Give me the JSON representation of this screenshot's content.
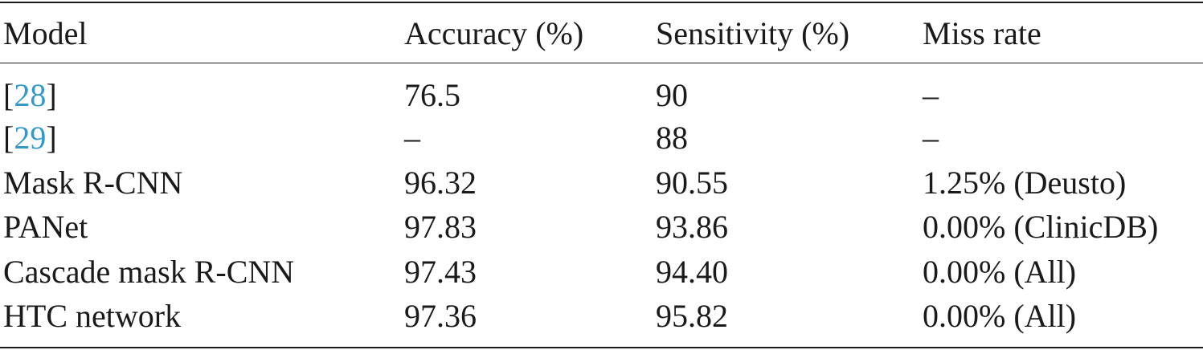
{
  "table": {
    "headers": [
      "Model",
      "Accuracy (%)",
      "Sensitivity (%)",
      "Miss rate"
    ],
    "rows": [
      {
        "model_prefix": "[",
        "model_ref": "28",
        "model_suffix": "]",
        "accuracy": "76.5",
        "sensitivity": "90",
        "miss_rate": "–"
      },
      {
        "model_prefix": "[",
        "model_ref": "29",
        "model_suffix": "]",
        "accuracy": "–",
        "sensitivity": "88",
        "miss_rate": "–"
      },
      {
        "model": "Mask R-CNN",
        "accuracy": "96.32",
        "sensitivity": "90.55",
        "miss_rate": "1.25% (Deusto)"
      },
      {
        "model": "PANet",
        "accuracy": "97.83",
        "sensitivity": "93.86",
        "miss_rate": "0.00% (ClinicDB)"
      },
      {
        "model": "Cascade mask R-CNN",
        "accuracy": "97.43",
        "sensitivity": "94.40",
        "miss_rate": "0.00% (All)"
      },
      {
        "model": "HTC network",
        "accuracy": "97.36",
        "sensitivity": "95.82",
        "miss_rate": "0.00% (All)"
      }
    ]
  },
  "colors": {
    "text": "#1a1a1a",
    "reference_link": "#3399cc"
  }
}
